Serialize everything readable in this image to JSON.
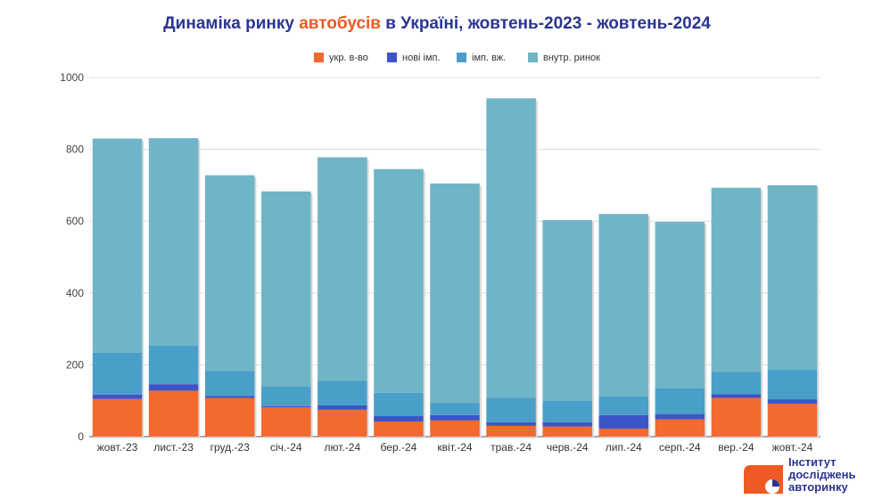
{
  "title": {
    "before": "Динаміка ринку ",
    "accent": "автобусів",
    "after": " в Україні, жовтень-2023 - жовтень-2024"
  },
  "logo": {
    "line1": "Інститут",
    "line2": "досліджень",
    "line3": "авторинку"
  },
  "colors": {
    "title": "#2a3590",
    "accent": "#ee5a24",
    "ukr": "#f26a2e",
    "new_imp": "#3d54c9",
    "imp_used": "#4a9fc9",
    "domestic": "#6fb5c7"
  },
  "chart_data": {
    "type": "bar",
    "stacked": true,
    "categories": [
      "жовт.-23",
      "лист.-23",
      "груд.-23",
      "січ.-24",
      "лют.-24",
      "бер.-24",
      "квіт.-24",
      "трав.-24",
      "черв.-24",
      "лип.-24",
      "серп.-24",
      "вер.-24",
      "жовт.-24"
    ],
    "series": [
      {
        "name": "укр. в-во",
        "color": "#f26a2e",
        "values": [
          105,
          128,
          108,
          82,
          75,
          42,
          45,
          30,
          28,
          22,
          48,
          108,
          92
        ]
      },
      {
        "name": "нові імп.",
        "color": "#3d54c9",
        "values": [
          12,
          18,
          5,
          3,
          12,
          15,
          15,
          10,
          12,
          38,
          15,
          10,
          12
        ]
      },
      {
        "name": "імп. вж.",
        "color": "#4a9fc9",
        "values": [
          117,
          107,
          70,
          55,
          68,
          65,
          35,
          68,
          60,
          52,
          72,
          62,
          82
        ]
      },
      {
        "name": "внутр. ринок",
        "color": "#6fb5c7",
        "values": [
          596,
          578,
          545,
          543,
          623,
          623,
          610,
          834,
          503,
          508,
          463,
          513,
          514
        ]
      }
    ],
    "ylim": [
      0,
      1000
    ],
    "yticks": [
      0,
      200,
      400,
      600,
      800,
      1000
    ],
    "grid": true,
    "legend": "top"
  }
}
